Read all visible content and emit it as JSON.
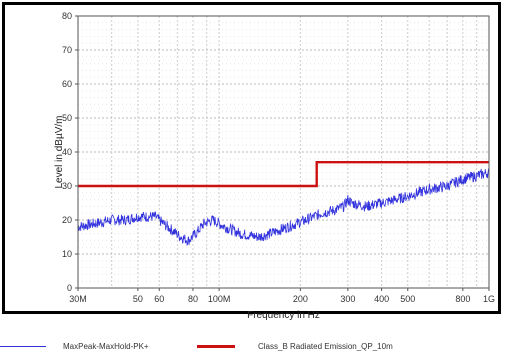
{
  "chart_data": {
    "type": "line",
    "xlabel": "Frequency in Hz",
    "ylabel": "Level in dBµV/m",
    "x_scale": "log",
    "xlim": [
      30000000,
      1000000000
    ],
    "ylim": [
      0,
      80
    ],
    "x_ticks": [
      {
        "value": 30000000,
        "label": "30M"
      },
      {
        "value": 50000000,
        "label": "50"
      },
      {
        "value": 60000000,
        "label": "60"
      },
      {
        "value": 80000000,
        "label": "80"
      },
      {
        "value": 100000000,
        "label": "100M"
      },
      {
        "value": 200000000,
        "label": "200"
      },
      {
        "value": 300000000,
        "label": "300"
      },
      {
        "value": 400000000,
        "label": "400"
      },
      {
        "value": 500000000,
        "label": "500"
      },
      {
        "value": 800000000,
        "label": "800"
      },
      {
        "value": 1000000000,
        "label": "1G"
      }
    ],
    "y_ticks": [
      0,
      10,
      20,
      30,
      40,
      50,
      60,
      70,
      80
    ],
    "grid": true,
    "series": [
      {
        "name": "MaxPeak-MaxHold-PK+",
        "color": "#3333dd",
        "x": [
          30000000,
          35000000,
          40000000,
          45000000,
          50000000,
          55000000,
          58000000,
          62000000,
          67000000,
          72000000,
          77000000,
          82000000,
          88000000,
          95000000,
          105000000,
          120000000,
          140000000,
          155000000,
          180000000,
          210000000,
          240000000,
          270000000,
          290000000,
          300000000,
          310000000,
          350000000,
          400000000,
          450000000,
          500000000,
          600000000,
          700000000,
          800000000,
          900000000,
          1000000000
        ],
        "y": [
          18,
          19,
          20,
          20,
          21,
          21,
          21,
          19,
          17,
          15,
          14,
          16,
          19,
          20,
          18,
          16,
          15,
          16,
          18,
          20,
          22,
          23,
          24,
          26,
          25,
          24,
          25,
          26,
          27,
          29,
          30,
          32,
          33,
          34
        ]
      },
      {
        "name": "Class_B Radiated Emission_QP_10m",
        "color": "#cc1111",
        "x": [
          30000000,
          230000000,
          230000000,
          1000000000
        ],
        "y": [
          30,
          30,
          37,
          37
        ]
      }
    ],
    "legend_placement": "bottom"
  },
  "legend": {
    "items": [
      {
        "label": "MaxPeak-MaxHold-PK+",
        "color": "#3333dd"
      },
      {
        "label": "Class_B Radiated Emission_QP_10m",
        "color": "#cc1111"
      }
    ]
  }
}
